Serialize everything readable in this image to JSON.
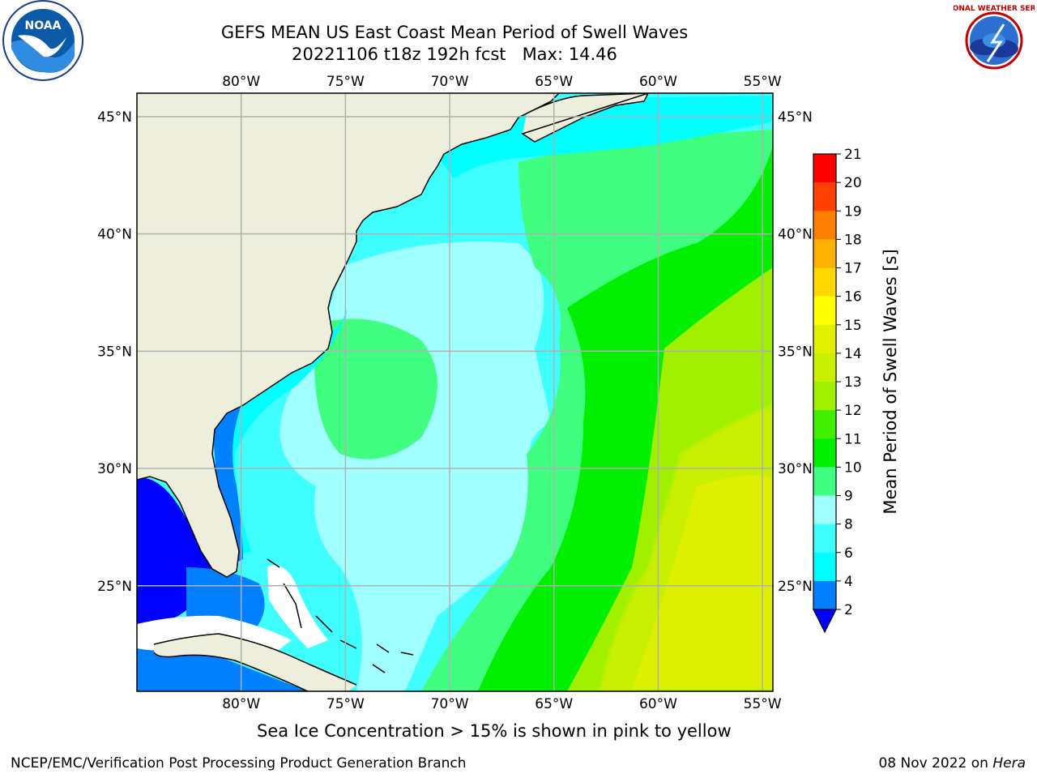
{
  "title": {
    "line1": "GEFS MEAN US East Coast Mean Period of Swell Waves",
    "line2": "20221106 t18z 192h fcst   Max: 14.46"
  },
  "map": {
    "lon_labels": [
      "80°W",
      "75°W",
      "70°W",
      "65°W",
      "60°W",
      "55°W"
    ],
    "lat_labels": [
      "45°N",
      "40°N",
      "35°N",
      "30°N",
      "25°N"
    ],
    "lon_range": [
      -85,
      -54.5
    ],
    "lat_range": [
      20.5,
      46
    ],
    "colors": {
      "land": "#eeeedd",
      "grid": "#b0b0b0",
      "coast": "#000000",
      "no_data": "#ffffff"
    }
  },
  "colorbar": {
    "label": "Mean Period of Swell Waves [s]",
    "ticks": [
      "2",
      "4",
      "6",
      "8",
      "9",
      "10",
      "11",
      "12",
      "13",
      "14",
      "15",
      "16",
      "17",
      "18",
      "19",
      "20",
      "21"
    ],
    "colors": [
      "#0000ff",
      "#0080ff",
      "#00ffff",
      "#40ffff",
      "#a0ffff",
      "#40ff80",
      "#00f000",
      "#40f000",
      "#a0f000",
      "#c8f000",
      "#e0f000",
      "#ffff00",
      "#ffd800",
      "#ffb000",
      "#ff8000",
      "#ff4000",
      "#ff0000"
    ],
    "under_color": "#0000ff"
  },
  "logos": {
    "left": {
      "name": "NOAA",
      "text": "NOAA"
    },
    "right": {
      "name": "National Weather Service",
      "text": "NATIONAL WEATHER SERVICE"
    }
  },
  "footer": {
    "ice_note": "Sea Ice Concentration > 15% is shown in pink to yellow",
    "credit_left": "NCEP/EMC/Verification Post Processing Product Generation Branch",
    "credit_date": "08 Nov 2022 on ",
    "credit_machine": "Hera"
  }
}
